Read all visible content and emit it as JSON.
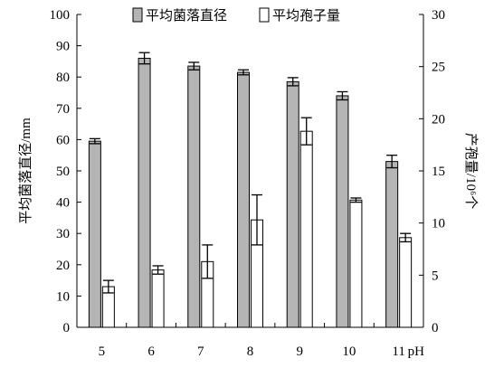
{
  "chart_data": {
    "type": "bar",
    "categories": [
      "5",
      "6",
      "7",
      "8",
      "9",
      "10",
      "11"
    ],
    "x_unit_label": "pH",
    "series": [
      {
        "name": "平均菌落直径",
        "axis": "left",
        "color": "#b5b5b5",
        "values": [
          59.5,
          86,
          83.5,
          81.5,
          78.5,
          74,
          53
        ],
        "errors": [
          0.8,
          1.8,
          1.2,
          0.8,
          1.3,
          1.3,
          2
        ]
      },
      {
        "name": "平均孢子量",
        "axis": "right",
        "color": "#ffffff",
        "values": [
          3.9,
          5.5,
          6.3,
          10.3,
          18.8,
          12.2,
          8.6
        ],
        "errors": [
          0.6,
          0.4,
          1.6,
          2.4,
          1.3,
          0.2,
          0.4
        ]
      }
    ],
    "left_axis": {
      "label": "平均菌落直径/mm",
      "min": 0,
      "max": 100,
      "ticks": [
        "0",
        "10",
        "20",
        "30",
        "40",
        "50",
        "60",
        "70",
        "80",
        "90",
        "100"
      ]
    },
    "right_axis": {
      "label": "产孢量/10⁶个",
      "min": 0,
      "max": 30,
      "ticks": [
        "0",
        "5",
        "10",
        "15",
        "20",
        "25",
        "30"
      ]
    },
    "legend_position": "top",
    "grid": false
  }
}
